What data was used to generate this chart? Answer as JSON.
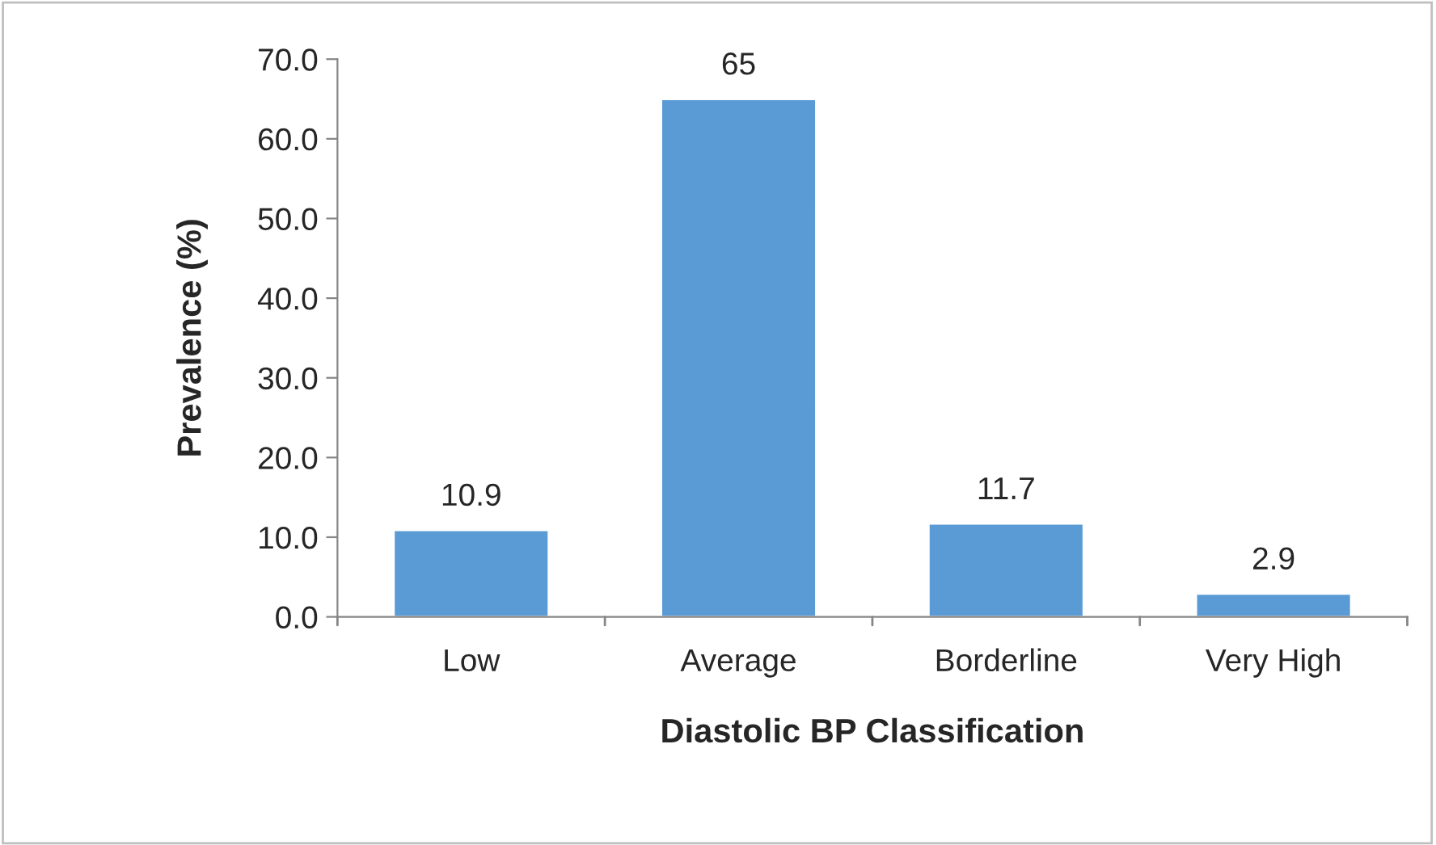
{
  "chart_data": {
    "type": "bar",
    "xlabel": "Diastolic BP Classification",
    "ylabel": "Prevalence (%)",
    "categories": [
      "Low",
      "Average",
      "Borderline",
      "Very High"
    ],
    "values": [
      10.9,
      65,
      11.7,
      2.9
    ],
    "color": "#5b9bd5",
    "data_labels": true,
    "ylim": [
      0,
      70
    ],
    "yticks": [
      {
        "value": 0,
        "label": "0.0"
      },
      {
        "value": 10,
        "label": "10.0"
      },
      {
        "value": 20,
        "label": "20.0"
      },
      {
        "value": 30,
        "label": "30.0"
      },
      {
        "value": 40,
        "label": "40.0"
      },
      {
        "value": 50,
        "label": "50.0"
      },
      {
        "value": 60,
        "label": "60.0"
      },
      {
        "value": 70,
        "label": "70.0"
      }
    ],
    "grid": false
  }
}
